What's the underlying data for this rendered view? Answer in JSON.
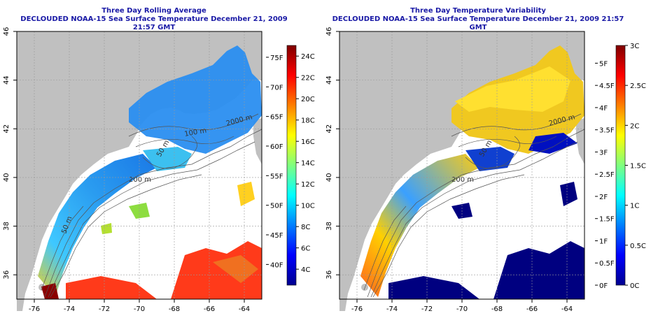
{
  "left_panel": {
    "title_line1": "Three Day Rolling Average",
    "title_line2": "DECLOUDED NOAA-15 Sea Surface Temperature December 21, 2009 21:57 GMT",
    "colorbar_f_labels": [
      "75F",
      "70F",
      "65F",
      "60F",
      "55F",
      "50F",
      "45F",
      "40F"
    ],
    "colorbar_f_values": [
      75,
      70,
      65,
      60,
      55,
      50,
      45,
      40
    ],
    "colorbar_c_labels": [
      "24C",
      "22C",
      "20C",
      "18C",
      "16C",
      "14C",
      "12C",
      "10C",
      "8C",
      "6C",
      "4C"
    ],
    "colorbar_c_values": [
      24,
      22,
      20,
      18,
      16,
      14,
      12,
      10,
      8,
      6,
      4
    ],
    "colorbar_range_c": [
      2.5,
      25
    ]
  },
  "right_panel": {
    "title_line1": "Three Day Temperature Variability",
    "title_line2": "DECLOUDED NOAA-15 Sea Surface Temperature December 21, 2009 21:57 GMT",
    "colorbar_f_labels": [
      "5F",
      "4.5F",
      "4F",
      "3.5F",
      "3F",
      "2.5F",
      "2F",
      "1.5F",
      "1F",
      "0.5F",
      "0F"
    ],
    "colorbar_f_values": [
      5,
      4.5,
      4,
      3.5,
      3,
      2.5,
      2,
      1.5,
      1,
      0.5,
      0
    ],
    "colorbar_c_labels": [
      "3C",
      "2.5C",
      "2C",
      "1.5C",
      "1C",
      "0.5C",
      "0C"
    ],
    "colorbar_c_values": [
      3,
      2.5,
      2,
      1.5,
      1,
      0.5,
      0
    ],
    "colorbar_range_c": [
      0,
      3
    ]
  },
  "map": {
    "lon_labels": [
      "-76",
      "-74",
      "-72",
      "-70",
      "-68",
      "-66",
      "-64"
    ],
    "lon_values": [
      -76,
      -74,
      -72,
      -70,
      -68,
      -66,
      -64
    ],
    "lat_labels": [
      "36",
      "38",
      "40",
      "42",
      "44",
      "46"
    ],
    "lat_values": [
      36,
      38,
      40,
      42,
      44,
      46
    ],
    "lon_range": [
      -77,
      -63
    ],
    "lat_range": [
      35,
      46
    ],
    "contour_labels": [
      "2000 m",
      "200 m",
      "200 m",
      "100 m",
      "50 m",
      "50 m"
    ]
  },
  "colors": {
    "land": "#c0c0c0",
    "water_nodata": "#ffffff",
    "title": "#1a1aa6",
    "colormap": [
      "#00008f",
      "#0000ff",
      "#007fff",
      "#00ffff",
      "#7fff7f",
      "#ffff00",
      "#ff7f00",
      "#ff0000",
      "#7f0000"
    ]
  }
}
